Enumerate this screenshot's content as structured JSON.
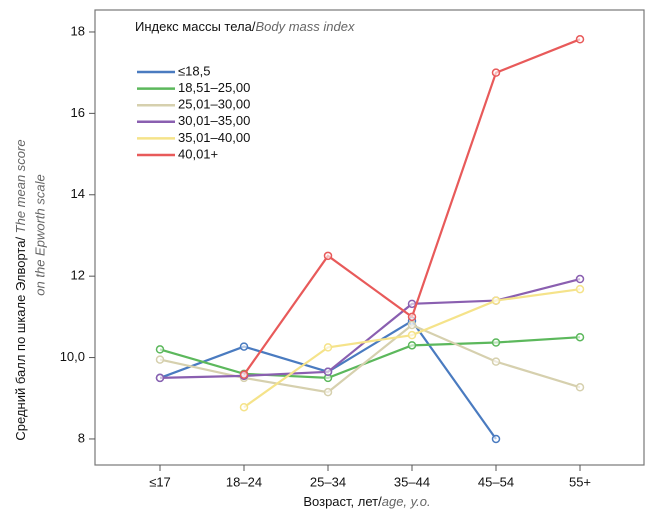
{
  "chart_data": {
    "type": "line",
    "legend_title": "Индекс массы тела/",
    "legend_title_en": "Body mass index",
    "ylabel": "Средний балл по шкале Элворта/ ",
    "ylabel_en": [
      "The mean score",
      "on the Epworth scale"
    ],
    "xlabel": "Возраст, лет/",
    "xlabel_en": "age, y.o.",
    "categories": [
      "≤17",
      "18–24",
      "25–34",
      "35–44",
      "45–54",
      "55+"
    ],
    "series": [
      {
        "name": "≤18,5",
        "color": "#4a7bc0",
        "values": [
          9.5,
          10.27,
          9.65,
          10.9,
          8.0,
          null
        ]
      },
      {
        "name": "18,51–25,00",
        "color": "#5cb85c",
        "values": [
          10.2,
          9.6,
          9.5,
          10.3,
          10.37,
          10.5
        ]
      },
      {
        "name": "25,01–30,00",
        "color": "#d6d0ae",
        "values": [
          9.95,
          9.5,
          9.15,
          10.8,
          9.9,
          9.27
        ]
      },
      {
        "name": "30,01–35,00",
        "color": "#8a5fb0",
        "values": [
          9.5,
          9.55,
          9.65,
          11.32,
          11.4,
          11.93
        ]
      },
      {
        "name": "35,01–40,00",
        "color": "#f5e38a",
        "values": [
          null,
          8.78,
          10.25,
          10.55,
          11.4,
          11.68
        ]
      },
      {
        "name": "40,01+",
        "color": "#e85a5a",
        "values": [
          null,
          9.58,
          12.5,
          11.0,
          17.0,
          17.82
        ]
      }
    ],
    "ylim": [
      7.36,
      18.54
    ],
    "yticks": [
      8,
      {
        "value": 10,
        "label": "10,0"
      },
      12,
      14,
      16,
      18
    ]
  }
}
